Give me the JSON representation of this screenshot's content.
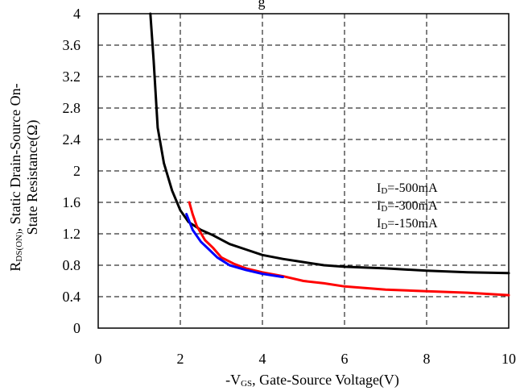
{
  "chart_data": {
    "type": "line",
    "title": "",
    "top_label": "g",
    "xlabel": {
      "prefix": "-V",
      "sub": "GS",
      "rest": ", Gate-Source Voltage(V)"
    },
    "ylabel": {
      "line1_prefix": "R",
      "line1_sub": "DS(ON)",
      "line1_rest": ", Static Drain-Source On-",
      "line2": "State Resistance(Ω)"
    },
    "xlim": [
      0,
      10
    ],
    "ylim": [
      0,
      4
    ],
    "x_ticks": [
      "0",
      "2",
      "4",
      "6",
      "8",
      "10"
    ],
    "y_ticks": [
      "0",
      "0.4",
      "0.8",
      "1.2",
      "1.6",
      "2",
      "2.4",
      "2.8",
      "3.2",
      "3.6",
      "4"
    ],
    "grid": true,
    "legend_position": "right-center",
    "series": [
      {
        "name": {
          "prefix": "I",
          "sub": "D",
          "rest": "=-500mA"
        },
        "color": "#000000",
        "points": [
          [
            1.27,
            4.0
          ],
          [
            1.35,
            3.4
          ],
          [
            1.45,
            2.55
          ],
          [
            1.6,
            2.1
          ],
          [
            1.8,
            1.75
          ],
          [
            2.0,
            1.5
          ],
          [
            2.2,
            1.35
          ],
          [
            2.5,
            1.25
          ],
          [
            2.8,
            1.18
          ],
          [
            3.2,
            1.07
          ],
          [
            3.6,
            1.0
          ],
          [
            4.0,
            0.93
          ],
          [
            4.5,
            0.88
          ],
          [
            5.0,
            0.84
          ],
          [
            5.5,
            0.8
          ],
          [
            6.0,
            0.78
          ],
          [
            7.0,
            0.76
          ],
          [
            8.0,
            0.73
          ],
          [
            9.0,
            0.71
          ],
          [
            10.0,
            0.7
          ]
        ]
      },
      {
        "name": {
          "prefix": "I",
          "sub": "D",
          "rest": "=-300mA"
        },
        "color": "#ff0000",
        "points": [
          [
            2.22,
            1.6
          ],
          [
            2.3,
            1.45
          ],
          [
            2.4,
            1.3
          ],
          [
            2.6,
            1.12
          ],
          [
            2.8,
            1.02
          ],
          [
            3.0,
            0.9
          ],
          [
            3.3,
            0.82
          ],
          [
            3.6,
            0.76
          ],
          [
            4.0,
            0.71
          ],
          [
            4.5,
            0.66
          ],
          [
            5.0,
            0.6
          ],
          [
            5.5,
            0.57
          ],
          [
            6.0,
            0.53
          ],
          [
            7.0,
            0.49
          ],
          [
            8.0,
            0.47
          ],
          [
            9.0,
            0.45
          ],
          [
            10.0,
            0.42
          ]
        ]
      },
      {
        "name": {
          "prefix": "I",
          "sub": "D",
          "rest": "=-150mA"
        },
        "color": "#0000ff",
        "points": [
          [
            2.15,
            1.45
          ],
          [
            2.3,
            1.25
          ],
          [
            2.5,
            1.1
          ],
          [
            2.7,
            1.0
          ],
          [
            2.9,
            0.9
          ],
          [
            3.2,
            0.8
          ],
          [
            3.6,
            0.74
          ],
          [
            4.0,
            0.69
          ],
          [
            4.5,
            0.65
          ]
        ]
      }
    ]
  }
}
